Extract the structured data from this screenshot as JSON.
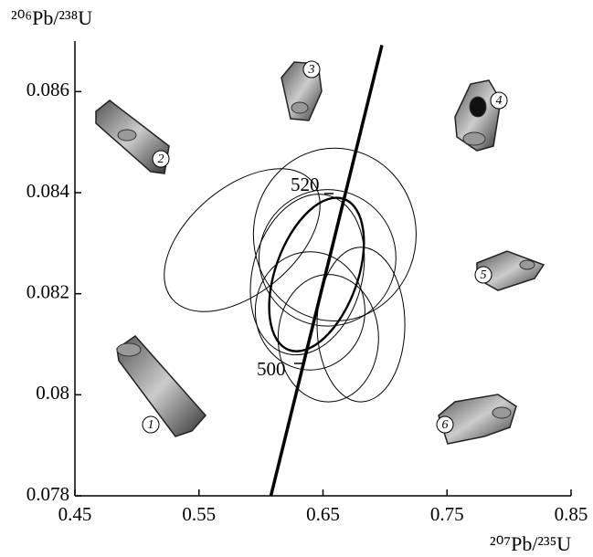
{
  "chart_data": {
    "type": "ellipse",
    "y_label": "²⁰⁶Pb/²³⁸U",
    "x_label": "²⁰⁷Pb/²³⁵U",
    "xlim": [
      0.45,
      0.85
    ],
    "xticks": [
      0.45,
      0.55,
      0.65,
      0.75,
      0.85
    ],
    "ylim": [
      0.078,
      0.087
    ],
    "yticks": [
      0.078,
      0.08,
      0.082,
      0.084,
      0.086
    ],
    "ellipses": [
      {
        "cx": 0.5848,
        "cy": 0.08306,
        "rx": 0.0737,
        "ry": 0.00105,
        "angle": -40,
        "bold": false
      },
      {
        "cx": 0.6595,
        "cy": 0.08317,
        "rx": 0.0656,
        "ry": 0.00171,
        "angle": 0,
        "bold": false
      },
      {
        "cx": 0.6374,
        "cy": 0.08238,
        "rx": 0.0442,
        "ry": 0.00162,
        "angle": 15,
        "bold": false
      },
      {
        "cx": 0.6536,
        "cy": 0.08271,
        "rx": 0.0552,
        "ry": 0.00135,
        "angle": 0,
        "bold": false
      },
      {
        "cx": 0.6448,
        "cy": 0.08238,
        "rx": 0.0331,
        "ry": 0.00159,
        "angle": 20,
        "bold": true
      },
      {
        "cx": 0.6396,
        "cy": 0.08166,
        "rx": 0.0442,
        "ry": 0.00117,
        "angle": 0,
        "bold": false
      },
      {
        "cx": 0.6806,
        "cy": 0.08139,
        "rx": 0.0354,
        "ry": 0.00153,
        "angle": 0,
        "bold": false
      },
      {
        "cx": 0.6543,
        "cy": 0.08112,
        "rx": 0.0405,
        "ry": 0.00126,
        "angle": 0,
        "bold": false
      }
    ],
    "concordia": {
      "x": [
        0.608,
        0.6975
      ],
      "y": [
        0.078,
        0.08692
      ],
      "age_labels": [
        520,
        500
      ]
    },
    "grains": [
      "1",
      "2",
      "3",
      "4",
      "5",
      "6"
    ]
  }
}
